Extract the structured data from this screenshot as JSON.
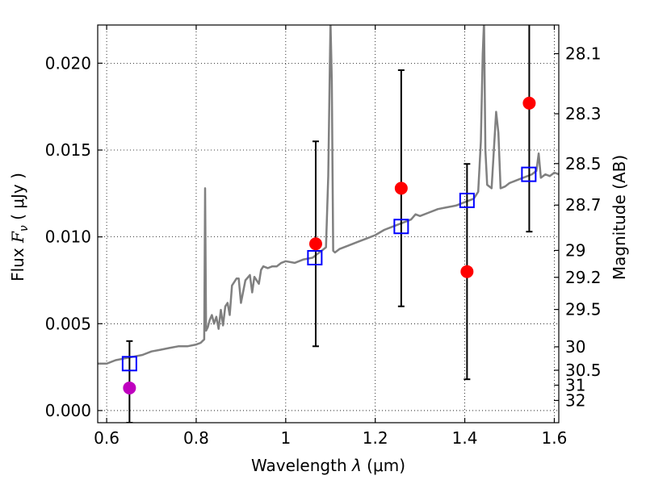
{
  "chart_data": {
    "type": "scatter",
    "xlabel_prefix": "Wavelength  ",
    "xlabel_lambda": "λ",
    "xlabel_unit": " (μm)",
    "ylabel_prefix": "Flux  ",
    "ylabel_sym": "F",
    "ylabel_sub": "ν",
    "ylabel_unit": "  ( μJy )",
    "y2label": "Magnitude (AB)",
    "xlim": [
      0.58,
      1.61
    ],
    "ylim": [
      -0.0007,
      0.0222
    ],
    "grid": true,
    "x_ticks": [
      0.6,
      0.8,
      1.0,
      1.2,
      1.4,
      1.6
    ],
    "x_tick_labels": [
      "0.6",
      "0.8",
      "1",
      "1.2",
      "1.4",
      "1.6"
    ],
    "y_ticks": [
      0.0,
      0.005,
      0.01,
      0.015,
      0.02
    ],
    "y_tick_labels": [
      "0.000",
      "0.005",
      "0.010",
      "0.015",
      "0.020"
    ],
    "mag_ticks": [
      {
        "label": "28.1",
        "flux": 0.02055
      },
      {
        "label": "28.3",
        "flux": 0.01709
      },
      {
        "label": "28.5",
        "flux": 0.01422
      },
      {
        "label": "28.7",
        "flux": 0.01183
      },
      {
        "label": "29",
        "flux": 0.00922
      },
      {
        "label": "29.2",
        "flux": 0.00767
      },
      {
        "label": "29.5",
        "flux": 0.00582
      },
      {
        "label": "30",
        "flux": 0.00367
      },
      {
        "label": "30.5",
        "flux": 0.00232
      },
      {
        "label": "31",
        "flux": 0.00146
      },
      {
        "label": "32",
        "flux": 0.00058
      }
    ],
    "model_spectrum": {
      "color": "#808080",
      "x": [
        0.58,
        0.6,
        0.62,
        0.64,
        0.66,
        0.68,
        0.7,
        0.72,
        0.74,
        0.76,
        0.78,
        0.8,
        0.81,
        0.818,
        0.82,
        0.822,
        0.826,
        0.83,
        0.835,
        0.84,
        0.845,
        0.85,
        0.855,
        0.86,
        0.865,
        0.87,
        0.875,
        0.88,
        0.89,
        0.895,
        0.9,
        0.91,
        0.92,
        0.925,
        0.93,
        0.94,
        0.945,
        0.95,
        0.96,
        0.97,
        0.98,
        0.99,
        1.0,
        1.02,
        1.04,
        1.06,
        1.07,
        1.08,
        1.09,
        1.095,
        1.098,
        1.1,
        1.103,
        1.106,
        1.11,
        1.12,
        1.14,
        1.16,
        1.18,
        1.2,
        1.22,
        1.24,
        1.26,
        1.28,
        1.29,
        1.3,
        1.32,
        1.34,
        1.36,
        1.38,
        1.4,
        1.42,
        1.43,
        1.436,
        1.44,
        1.443,
        1.446,
        1.45,
        1.46,
        1.47,
        1.475,
        1.48,
        1.49,
        1.5,
        1.52,
        1.54,
        1.55,
        1.56,
        1.565,
        1.57,
        1.58,
        1.59,
        1.6,
        1.61
      ],
      "y": [
        0.0027,
        0.0027,
        0.0029,
        0.003,
        0.0031,
        0.0032,
        0.0034,
        0.0035,
        0.0036,
        0.0037,
        0.0037,
        0.0038,
        0.0039,
        0.0041,
        0.0128,
        0.0046,
        0.0048,
        0.0052,
        0.0055,
        0.005,
        0.0054,
        0.0047,
        0.0058,
        0.0049,
        0.006,
        0.0062,
        0.0055,
        0.0072,
        0.0076,
        0.0076,
        0.0062,
        0.0075,
        0.0078,
        0.0068,
        0.0077,
        0.0073,
        0.0081,
        0.0083,
        0.0082,
        0.0083,
        0.0083,
        0.0085,
        0.0086,
        0.0085,
        0.0087,
        0.0088,
        0.009,
        0.0092,
        0.0094,
        0.0135,
        0.019,
        0.0224,
        0.019,
        0.0092,
        0.0091,
        0.0093,
        0.0095,
        0.0097,
        0.0099,
        0.0101,
        0.0104,
        0.0106,
        0.0108,
        0.011,
        0.0113,
        0.0112,
        0.0114,
        0.0116,
        0.0117,
        0.0118,
        0.012,
        0.0122,
        0.0126,
        0.0155,
        0.0205,
        0.0224,
        0.015,
        0.013,
        0.0128,
        0.0172,
        0.016,
        0.0128,
        0.0129,
        0.0131,
        0.0133,
        0.0135,
        0.0136,
        0.0138,
        0.0148,
        0.0134,
        0.0136,
        0.0135,
        0.0137,
        0.0136
      ]
    },
    "model_points": [
      {
        "x": 0.651,
        "y": 0.0027
      },
      {
        "x": 1.065,
        "y": 0.0088
      },
      {
        "x": 1.258,
        "y": 0.0106
      },
      {
        "x": 1.405,
        "y": 0.0121
      },
      {
        "x": 1.543,
        "y": 0.0136
      }
    ],
    "observed_points": [
      {
        "x": 0.651,
        "y": 0.0013,
        "ylow": -0.0007,
        "yhigh": 0.004,
        "color": "#bf00bf"
      },
      {
        "x": 1.067,
        "y": 0.0096,
        "ylow": 0.0037,
        "yhigh": 0.0155,
        "color": "#ff0000"
      },
      {
        "x": 1.258,
        "y": 0.0128,
        "ylow": 0.006,
        "yhigh": 0.0196,
        "color": "#ff0000"
      },
      {
        "x": 1.405,
        "y": 0.008,
        "ylow": 0.0018,
        "yhigh": 0.0142,
        "color": "#ff0000"
      },
      {
        "x": 1.544,
        "y": 0.0177,
        "ylow": 0.0103,
        "yhigh": 0.0224,
        "color": "#ff0000"
      }
    ],
    "model_point_color": "#0000ff",
    "errorbar_color": "#000000"
  }
}
